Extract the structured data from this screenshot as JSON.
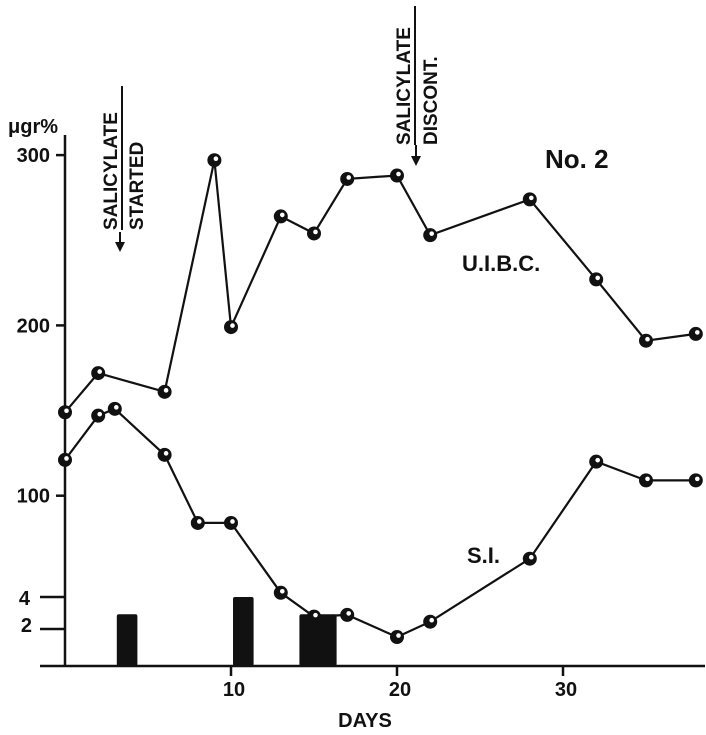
{
  "chart_data": {
    "type": "line",
    "y_unit_label": "μgr%",
    "panel_label": "No. 2",
    "xlabel": "DAYS",
    "x_ticks": [
      10,
      20,
      30
    ],
    "y_ticks_main": [
      100,
      200,
      300
    ],
    "y_ticks_bar": [
      2,
      4
    ],
    "xlim": [
      0,
      38
    ],
    "ylim": [
      0,
      300
    ],
    "series": [
      {
        "name": "U.I.B.C.",
        "x": [
          0,
          2,
          6,
          9,
          10,
          13,
          15,
          17,
          20,
          22,
          28,
          32,
          35,
          38
        ],
        "y": [
          149,
          172,
          161,
          297,
          199,
          264,
          254,
          286,
          288,
          253,
          274,
          227,
          191,
          195
        ]
      },
      {
        "name": "S.I.",
        "x": [
          0,
          2,
          3,
          6,
          8,
          10,
          13,
          15,
          17,
          20,
          22,
          28,
          32,
          35,
          38
        ],
        "y": [
          121,
          147,
          151,
          124,
          84,
          84,
          43,
          29,
          30,
          17,
          26,
          63,
          120,
          109,
          109
        ]
      }
    ],
    "bars": {
      "x": [
        3,
        10,
        14
      ],
      "width_days": [
        1,
        1,
        2
      ],
      "values": [
        3,
        4,
        3
      ]
    },
    "annotations": [
      {
        "line1": "SALICYLATE",
        "line2": "STARTED",
        "x": 3
      },
      {
        "line1": "SALICYLATE",
        "line2": "DISCONT.",
        "x": 20.5
      }
    ]
  }
}
